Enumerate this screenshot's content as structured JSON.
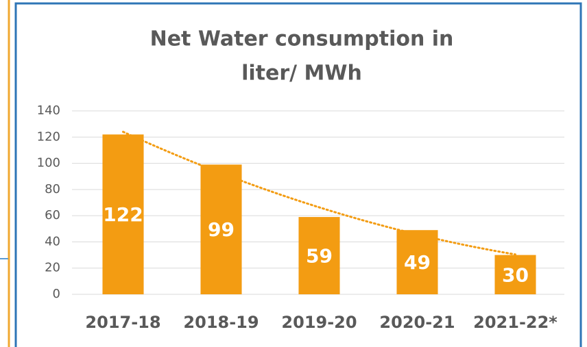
{
  "chart_data": {
    "type": "bar",
    "title": [
      "Net Water consumption in",
      "liter/ MWh"
    ],
    "categories": [
      "2017-18",
      "2018-19",
      "2019-20",
      "2020-21",
      "2021-22*"
    ],
    "values": [
      122,
      99,
      59,
      49,
      30
    ],
    "color": "#f39c12",
    "ylim": [
      0,
      140
    ],
    "yticks": [
      0,
      20,
      40,
      60,
      80,
      100,
      120,
      140
    ],
    "grid": true,
    "trendline": "polynomial"
  }
}
